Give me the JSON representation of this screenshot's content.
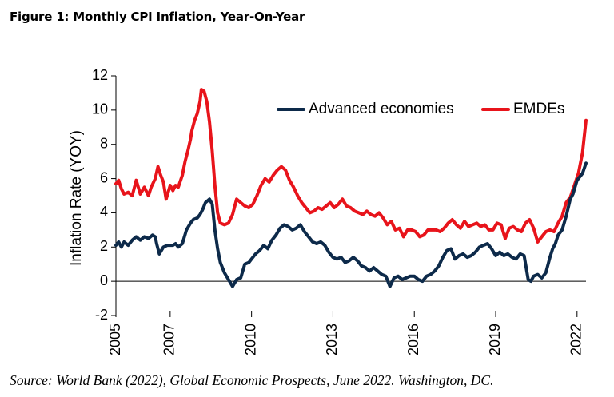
{
  "figure_title": "Figure 1: Monthly CPI Inflation, Year-On-Year",
  "source_note": "Source: World Bank (2022), Global Economic Prospects, June 2022. Washington, DC.",
  "colors": {
    "advanced": "#0d2a4a",
    "emdes": "#e8141b",
    "axis": "#000000"
  },
  "chart_data": {
    "type": "line",
    "title": "Figure 1: Monthly CPI Inflation, Year-On-Year",
    "xlabel": "",
    "ylabel": "Inflation Rate (YOY)",
    "ylim": [
      -2,
      12
    ],
    "xlim": [
      2005.0,
      2022.33
    ],
    "yticks": [
      -2,
      0,
      2,
      4,
      6,
      8,
      10,
      12
    ],
    "ytick_labels": [
      "-2",
      "0",
      "2",
      "4",
      "6",
      "8",
      "10",
      "12"
    ],
    "xticks": [
      2005,
      2007,
      2010,
      2013,
      2016,
      2019,
      2022
    ],
    "xtick_labels": [
      "2005",
      "2007",
      "2010",
      "2013",
      "2016",
      "2019",
      "2022"
    ],
    "legend_position": "top-right",
    "series": [
      {
        "name": "Advanced economies",
        "x": [
          2005.0,
          2005.1,
          2005.2,
          2005.3,
          2005.45,
          2005.6,
          2005.75,
          2005.9,
          2006.05,
          2006.2,
          2006.35,
          2006.45,
          2006.5,
          2006.6,
          2006.75,
          2006.9,
          2007.0,
          2007.1,
          2007.2,
          2007.3,
          2007.45,
          2007.6,
          2007.75,
          2007.85,
          2008.0,
          2008.1,
          2008.2,
          2008.3,
          2008.45,
          2008.55,
          2008.65,
          2008.75,
          2008.85,
          2009.0,
          2009.15,
          2009.3,
          2009.45,
          2009.6,
          2009.75,
          2009.9,
          2010.0,
          2010.15,
          2010.3,
          2010.45,
          2010.6,
          2010.75,
          2010.9,
          2011.05,
          2011.2,
          2011.35,
          2011.5,
          2011.65,
          2011.8,
          2011.95,
          2012.1,
          2012.25,
          2012.4,
          2012.55,
          2012.7,
          2012.85,
          2013.0,
          2013.15,
          2013.3,
          2013.45,
          2013.6,
          2013.75,
          2013.9,
          2014.05,
          2014.2,
          2014.35,
          2014.5,
          2014.65,
          2014.8,
          2014.95,
          2015.1,
          2015.25,
          2015.4,
          2015.55,
          2015.7,
          2015.85,
          2016.0,
          2016.15,
          2016.3,
          2016.45,
          2016.6,
          2016.75,
          2016.9,
          2017.05,
          2017.2,
          2017.35,
          2017.5,
          2017.65,
          2017.8,
          2017.95,
          2018.1,
          2018.25,
          2018.4,
          2018.55,
          2018.7,
          2018.85,
          2019.0,
          2019.15,
          2019.3,
          2019.45,
          2019.6,
          2019.75,
          2019.9,
          2020.05,
          2020.2,
          2020.3,
          2020.4,
          2020.55,
          2020.7,
          2020.85,
          2021.0,
          2021.1,
          2021.2,
          2021.3,
          2021.45,
          2021.6,
          2021.75,
          2021.85,
          2022.0,
          2022.1,
          2022.2,
          2022.33
        ],
        "values": [
          2.1,
          2.3,
          2.0,
          2.3,
          2.1,
          2.4,
          2.6,
          2.4,
          2.6,
          2.5,
          2.7,
          2.6,
          2.2,
          1.6,
          2.0,
          2.1,
          2.1,
          2.1,
          2.2,
          2.0,
          2.2,
          3.0,
          3.4,
          3.6,
          3.7,
          3.9,
          4.2,
          4.6,
          4.8,
          4.5,
          3.0,
          1.9,
          1.1,
          0.5,
          0.1,
          -0.3,
          0.1,
          0.2,
          1.0,
          1.1,
          1.3,
          1.6,
          1.8,
          2.1,
          1.9,
          2.4,
          2.7,
          3.1,
          3.3,
          3.2,
          3.0,
          3.1,
          3.3,
          2.9,
          2.6,
          2.3,
          2.2,
          2.3,
          2.1,
          1.7,
          1.4,
          1.3,
          1.4,
          1.1,
          1.2,
          1.4,
          1.2,
          0.9,
          0.8,
          0.6,
          0.8,
          0.6,
          0.4,
          0.3,
          -0.3,
          0.2,
          0.3,
          0.1,
          0.2,
          0.3,
          0.3,
          0.1,
          0.0,
          0.3,
          0.4,
          0.6,
          0.9,
          1.4,
          1.8,
          1.9,
          1.3,
          1.5,
          1.6,
          1.4,
          1.5,
          1.7,
          2.0,
          2.1,
          2.2,
          1.9,
          1.5,
          1.7,
          1.5,
          1.6,
          1.4,
          1.3,
          1.6,
          1.5,
          0.1,
          0.0,
          0.3,
          0.4,
          0.2,
          0.5,
          1.4,
          1.9,
          2.2,
          2.7,
          3.0,
          3.8,
          4.8,
          5.1,
          5.9,
          6.1,
          6.3,
          6.9
        ]
      },
      {
        "name": "EMDEs",
        "x": [
          2005.0,
          2005.1,
          2005.2,
          2005.3,
          2005.45,
          2005.6,
          2005.75,
          2005.9,
          2006.05,
          2006.2,
          2006.3,
          2006.45,
          2006.55,
          2006.65,
          2006.75,
          2006.85,
          2007.0,
          2007.1,
          2007.2,
          2007.3,
          2007.45,
          2007.55,
          2007.65,
          2007.75,
          2007.8,
          2007.9,
          2008.0,
          2008.1,
          2008.15,
          2008.25,
          2008.35,
          2008.45,
          2008.55,
          2008.65,
          2008.75,
          2008.85,
          2009.0,
          2009.15,
          2009.3,
          2009.45,
          2009.6,
          2009.75,
          2009.9,
          2010.05,
          2010.2,
          2010.35,
          2010.5,
          2010.65,
          2010.8,
          2010.95,
          2011.1,
          2011.25,
          2011.4,
          2011.55,
          2011.7,
          2011.85,
          2012.0,
          2012.15,
          2012.3,
          2012.45,
          2012.6,
          2012.75,
          2012.9,
          2013.05,
          2013.2,
          2013.35,
          2013.5,
          2013.65,
          2013.8,
          2013.95,
          2014.1,
          2014.25,
          2014.4,
          2014.55,
          2014.7,
          2014.85,
          2015.0,
          2015.15,
          2015.3,
          2015.45,
          2015.6,
          2015.75,
          2015.9,
          2016.05,
          2016.2,
          2016.35,
          2016.5,
          2016.65,
          2016.8,
          2016.95,
          2017.1,
          2017.25,
          2017.4,
          2017.55,
          2017.7,
          2017.85,
          2018.0,
          2018.15,
          2018.3,
          2018.45,
          2018.6,
          2018.75,
          2018.9,
          2019.05,
          2019.2,
          2019.35,
          2019.5,
          2019.65,
          2019.8,
          2019.95,
          2020.1,
          2020.25,
          2020.4,
          2020.55,
          2020.7,
          2020.85,
          2021.0,
          2021.15,
          2021.3,
          2021.45,
          2021.6,
          2021.75,
          2021.9,
          2022.05,
          2022.2,
          2022.33
        ],
        "values": [
          5.7,
          5.9,
          5.4,
          5.1,
          5.2,
          5.0,
          5.9,
          5.1,
          5.5,
          5.0,
          5.5,
          6.0,
          6.7,
          6.2,
          5.8,
          4.8,
          5.6,
          5.3,
          5.6,
          5.5,
          6.2,
          7.0,
          7.6,
          8.3,
          8.8,
          9.4,
          9.8,
          10.5,
          11.2,
          11.1,
          10.5,
          9.3,
          7.6,
          5.6,
          4.0,
          3.4,
          3.3,
          3.4,
          3.9,
          4.8,
          4.6,
          4.4,
          4.3,
          4.5,
          5.0,
          5.6,
          6.0,
          5.8,
          6.2,
          6.5,
          6.7,
          6.5,
          5.9,
          5.5,
          5.0,
          4.6,
          4.3,
          4.0,
          4.1,
          4.3,
          4.2,
          4.4,
          4.6,
          4.3,
          4.5,
          4.8,
          4.4,
          4.3,
          4.1,
          4.0,
          3.9,
          4.1,
          3.9,
          3.8,
          4.0,
          3.7,
          3.3,
          3.5,
          3.0,
          3.1,
          2.6,
          3.0,
          3.0,
          2.9,
          2.6,
          2.7,
          3.0,
          3.0,
          3.0,
          2.9,
          3.1,
          3.4,
          3.6,
          3.3,
          3.1,
          3.5,
          3.2,
          3.3,
          3.4,
          3.2,
          3.3,
          3.0,
          3.0,
          3.4,
          3.3,
          2.5,
          3.1,
          3.2,
          3.0,
          2.9,
          3.4,
          3.6,
          3.1,
          2.3,
          2.6,
          2.9,
          3.0,
          2.9,
          3.4,
          3.8,
          4.6,
          4.9,
          5.6,
          6.3,
          7.5,
          9.4
        ]
      }
    ]
  }
}
